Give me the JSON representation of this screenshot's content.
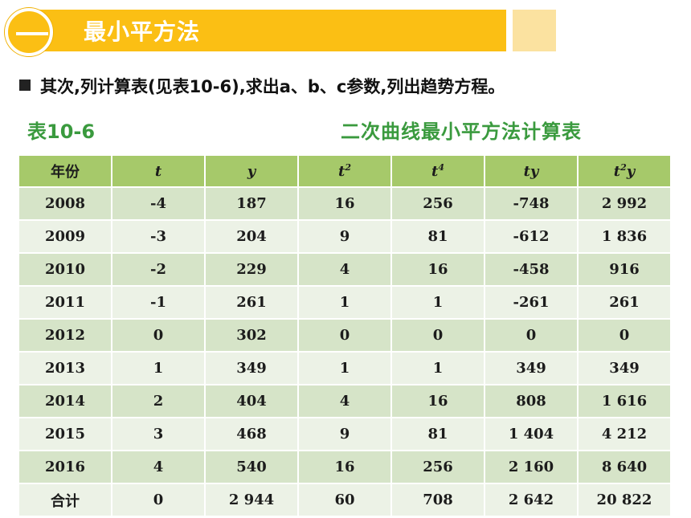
{
  "header": {
    "title": "最小平方法",
    "accent_color": "#fbbf14"
  },
  "bullet_text": "其次,列计算表(见表10-6),求出a、b、c参数,列出趋势方程。",
  "table_label": "表10-6",
  "table_caption": "二次曲线最小平方法计算表",
  "table": {
    "headers": [
      "年份",
      "t",
      "y",
      "t2",
      "t4",
      "ty",
      "t2y"
    ],
    "rows": [
      [
        "2008",
        "-4",
        "187",
        "16",
        "256",
        "-748",
        "2 992"
      ],
      [
        "2009",
        "-3",
        "204",
        "9",
        "81",
        "-612",
        "1 836"
      ],
      [
        "2010",
        "-2",
        "229",
        "4",
        "16",
        "-458",
        "916"
      ],
      [
        "2011",
        "-1",
        "261",
        "1",
        "1",
        "-261",
        "261"
      ],
      [
        "2012",
        "0",
        "302",
        "0",
        "0",
        "0",
        "0"
      ],
      [
        "2013",
        "1",
        "349",
        "1",
        "1",
        "349",
        "349"
      ],
      [
        "2014",
        "2",
        "404",
        "4",
        "16",
        "808",
        "1 616"
      ],
      [
        "2015",
        "3",
        "468",
        "9",
        "81",
        "1 404",
        "4 212"
      ],
      [
        "2016",
        "4",
        "540",
        "16",
        "256",
        "2 160",
        "8 640"
      ],
      [
        "合计",
        "0",
        "2 944",
        "60",
        "708",
        "2 642",
        "20 822"
      ]
    ]
  }
}
